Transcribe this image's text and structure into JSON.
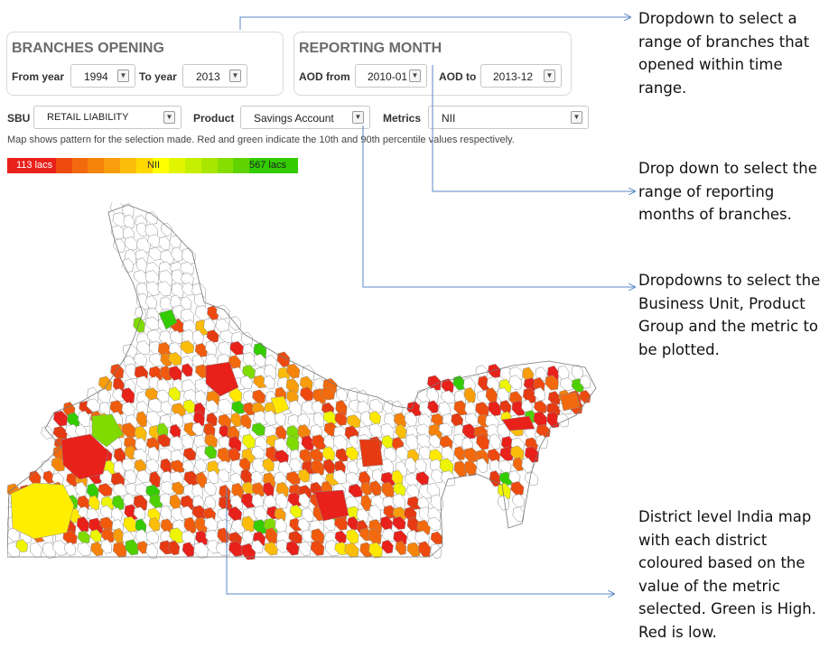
{
  "branches": {
    "title": "BRANCHES OPENING",
    "from_label": "From year",
    "from_value": "1994",
    "to_label": "To year",
    "to_value": "2013"
  },
  "reporting": {
    "title": "REPORTING MONTH",
    "from_label": "AOD from",
    "from_value": "2010-01",
    "to_label": "AOD to",
    "to_value": "2013-12"
  },
  "filters": {
    "sbu_label": "SBU",
    "sbu_value": "RETAIL LIABILITY",
    "product_label": "Product",
    "product_value": "Savings Account",
    "metrics_label": "Metrics",
    "metrics_value": "NII"
  },
  "note": "Map shows pattern for the selection made. Red and green indicate the 10th and 90th percentile values respectively.",
  "legend": {
    "low_label": "113 lacs",
    "mid_label": "NII",
    "high_label": "567 lacs",
    "low_color": "#e8211b",
    "high_color": "#33cc00"
  },
  "annotations": {
    "dropdown_branches": "Dropdown to select  a range of branches that opened within time range.",
    "dropdown_months": "Drop down to select the range of reporting months of branches.",
    "dropdowns_filters": "Dropdowns to select the Business Unit, Product Group and the metric to be plotted.",
    "map_description": "District level India map with each district coloured based on the value of the metric selected. Green is High. Red is low."
  },
  "callout_color": "#5b86c5",
  "dropdown_arrow_icon": "chevron-down-icon",
  "map_name": "district-level-india-map"
}
